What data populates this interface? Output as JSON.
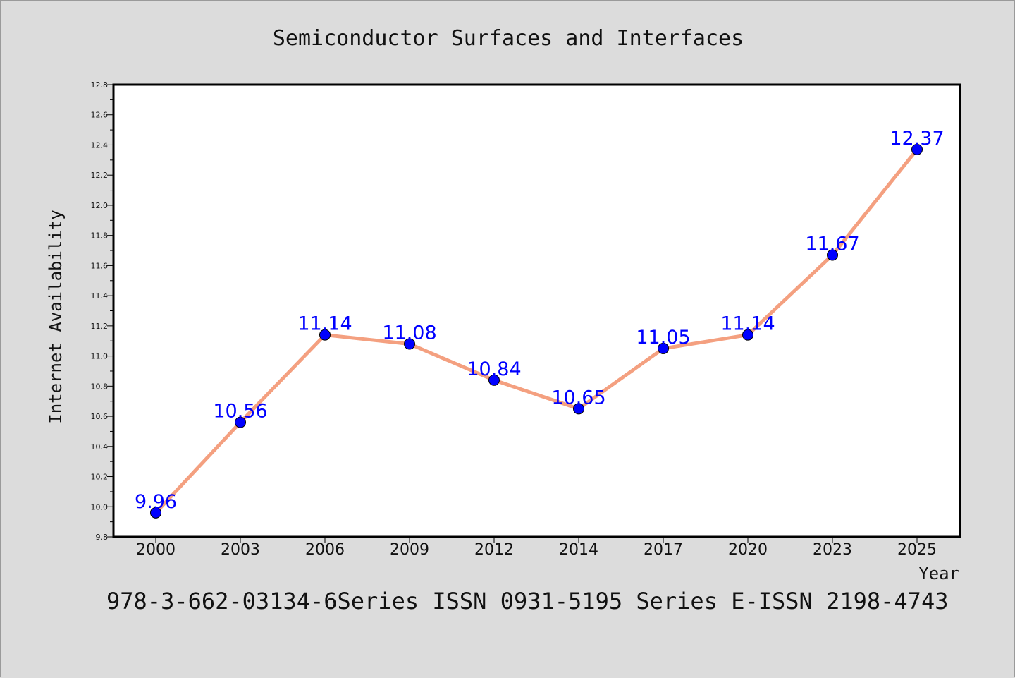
{
  "chart_data": {
    "type": "line",
    "title": "Semiconductor Surfaces and Interfaces",
    "xlabel": "Year",
    "ylabel": "Internet Availability",
    "categories": [
      "2000",
      "2003",
      "2006",
      "2009",
      "2012",
      "2014",
      "2017",
      "2020",
      "2023",
      "2025"
    ],
    "series": [
      {
        "values": [
          9.96,
          10.56,
          11.14,
          11.08,
          10.84,
          10.65,
          11.05,
          11.14,
          11.67,
          12.37
        ]
      }
    ],
    "data_labels": [
      "9.96",
      "10.56",
      "11.14",
      "11.08",
      "10.84",
      "10.65",
      "11.05",
      "11.14",
      "11.67",
      "12.37"
    ],
    "ylim": [
      9.8,
      12.8
    ],
    "yticks": [
      "9.8",
      "10.0",
      "10.2",
      "10.4",
      "10.6",
      "10.8",
      "11.0",
      "11.2",
      "11.4",
      "11.6",
      "11.8",
      "12.0",
      "12.2",
      "12.4",
      "12.6",
      "12.8"
    ],
    "grid": false,
    "colors": {
      "line": "#f4a080",
      "marker": "#0000ff",
      "label": "#0000ff",
      "background": "#dcdcdc",
      "plot_area": "#ffffff"
    }
  },
  "footer": {
    "text": "978-3-662-03134-6Series ISSN 0931-5195 Series E-ISSN 2198-4743"
  }
}
